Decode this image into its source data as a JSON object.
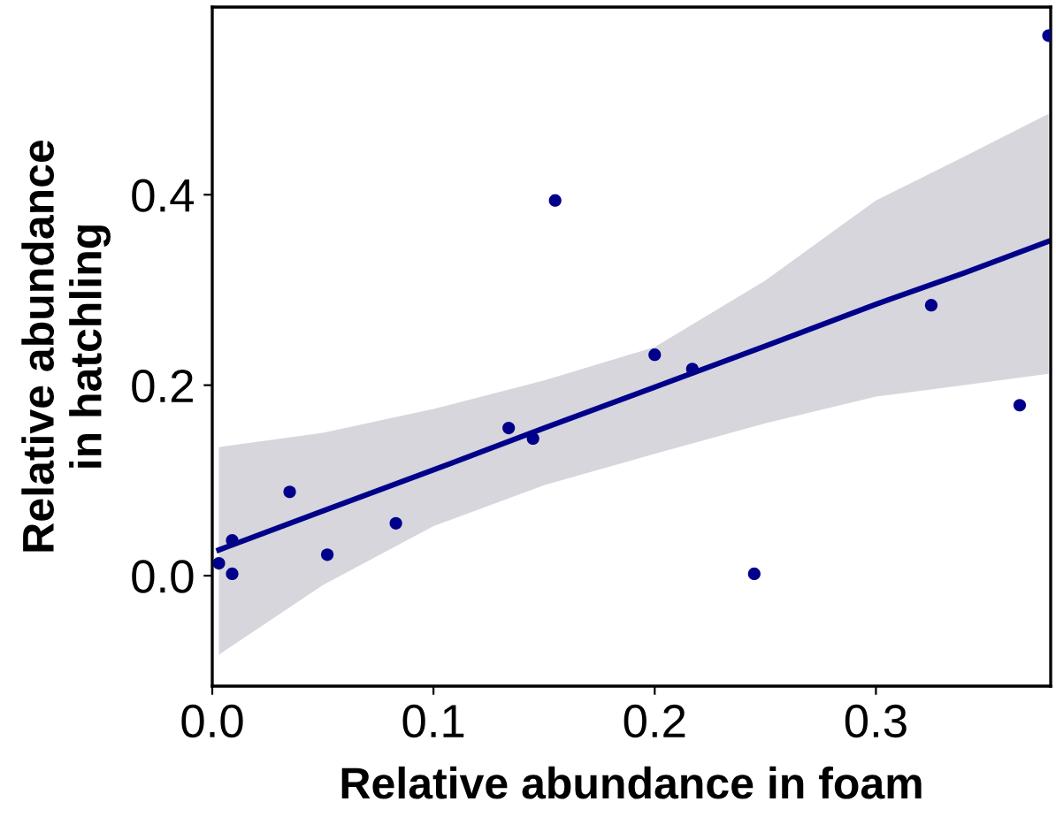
{
  "chart_data": {
    "type": "scatter",
    "xlabel": "Relative abundance in foam",
    "ylabel": "Relative abundance\nin hatchling",
    "xlim": [
      0,
      0.379
    ],
    "ylim": [
      -0.116,
      0.597
    ],
    "xticks": [
      {
        "value": 0,
        "label": "0.0"
      },
      0.1,
      0.2,
      0.3
    ],
    "yticks": [
      {
        "value": 0,
        "label": "0.0"
      },
      0.2,
      0.4
    ],
    "grid": false,
    "series": [
      {
        "marker": "circle",
        "color": "#00008b",
        "x": [
          0.003,
          0.009,
          0.009,
          0.035,
          0.052,
          0.083,
          0.134,
          0.145,
          0.155,
          0.2,
          0.217,
          0.245,
          0.325,
          0.365,
          0.378
        ],
        "values": [
          0.013,
          0.037,
          0.002,
          0.088,
          0.022,
          0.055,
          0.155,
          0.144,
          0.394,
          0.232,
          0.217,
          0.002,
          0.284,
          0.179,
          0.567
        ]
      },
      {
        "type": "line",
        "color": "#00008b",
        "line_style": "solid",
        "x": [
          0.003,
          0.05,
          0.1,
          0.15,
          0.2,
          0.25,
          0.3,
          0.34,
          0.378
        ],
        "values": [
          0.027,
          0.068,
          0.111,
          0.155,
          0.198,
          0.241,
          0.285,
          0.318,
          0.351
        ],
        "lower": [
          -0.083,
          -0.01,
          0.052,
          0.095,
          0.128,
          0.16,
          0.188,
          0.2,
          0.212
        ],
        "upper": [
          0.135,
          0.15,
          0.175,
          0.205,
          0.24,
          0.31,
          0.394,
          0.44,
          0.485
        ]
      }
    ]
  }
}
